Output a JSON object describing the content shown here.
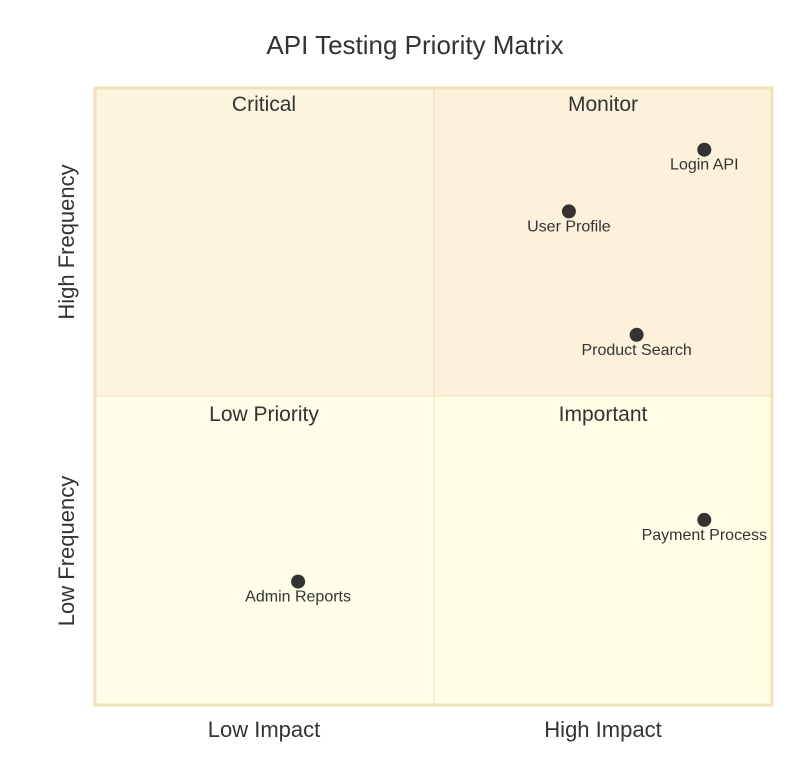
{
  "chart_data": {
    "type": "quadrant",
    "title": "API Testing Priority Matrix",
    "x_axis": {
      "low_label": "Low Impact",
      "high_label": "High Impact",
      "range": [
        0,
        1
      ]
    },
    "y_axis": {
      "low_label": "Low Frequency",
      "high_label": "High Frequency",
      "range": [
        0,
        1
      ]
    },
    "quadrants": {
      "top_left": {
        "label": "Critical",
        "color": "#fdf5df"
      },
      "top_right": {
        "label": "Monitor",
        "color": "#fdf1dc"
      },
      "bottom_left": {
        "label": "Low Priority",
        "color": "#fffee8"
      },
      "bottom_right": {
        "label": "Important",
        "color": "#fffee7"
      }
    },
    "border_color": "#f0e2b6",
    "point_color": "#333333",
    "points": [
      {
        "label": "Login API",
        "x": 0.9,
        "y": 0.9
      },
      {
        "label": "User Profile",
        "x": 0.7,
        "y": 0.8
      },
      {
        "label": "Product Search",
        "x": 0.8,
        "y": 0.6
      },
      {
        "label": "Payment Process",
        "x": 0.9,
        "y": 0.3
      },
      {
        "label": "Admin Reports",
        "x": 0.3,
        "y": 0.2
      }
    ]
  }
}
